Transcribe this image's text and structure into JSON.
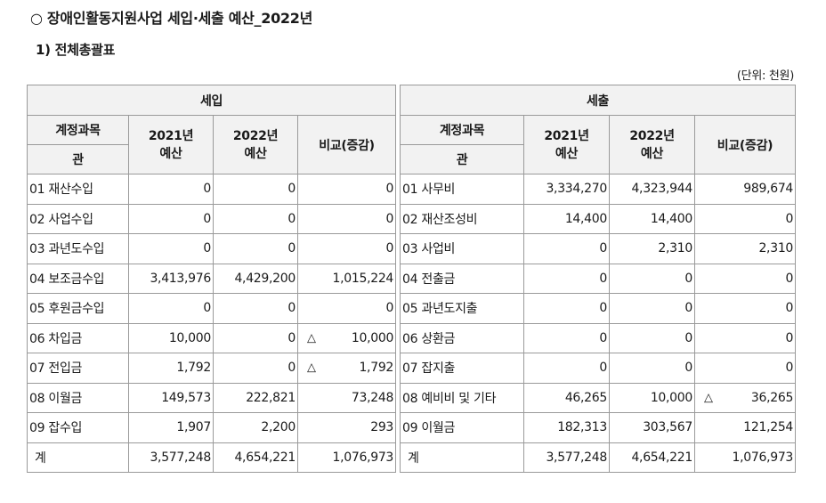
{
  "title": "○ 장애인활동지원사업 세입·세출 예산_2022년",
  "subtitle": "1) 전체총괄표",
  "unit": "(단위: 천원)",
  "income": {
    "header": "세입",
    "col_account": "계정과목",
    "col_category": "관",
    "col_2021_line1": "2021년",
    "col_2021_line2": "예산",
    "col_2022_line1": "2022년",
    "col_2022_line2": "예산",
    "col_compare": "비교(증감)",
    "rows": [
      {
        "name": "01 재산수입",
        "y2021": "0",
        "y2022": "0",
        "tri": "",
        "cmp": "0"
      },
      {
        "name": "02 사업수입",
        "y2021": "0",
        "y2022": "0",
        "tri": "",
        "cmp": "0"
      },
      {
        "name": "03 과년도수입",
        "y2021": "0",
        "y2022": "0",
        "tri": "",
        "cmp": "0"
      },
      {
        "name": "04 보조금수입",
        "y2021": "3,413,976",
        "y2022": "4,429,200",
        "tri": "",
        "cmp": "1,015,224"
      },
      {
        "name": "05 후원금수입",
        "y2021": "0",
        "y2022": "0",
        "tri": "",
        "cmp": "0"
      },
      {
        "name": "06 차입금",
        "y2021": "10,000",
        "y2022": "0",
        "tri": "△",
        "cmp": "10,000"
      },
      {
        "name": "07 전입금",
        "y2021": "1,792",
        "y2022": "0",
        "tri": "△",
        "cmp": "1,792"
      },
      {
        "name": "08 이월금",
        "y2021": "149,573",
        "y2022": "222,821",
        "tri": "",
        "cmp": "73,248"
      },
      {
        "name": "09 잡수입",
        "y2021": "1,907",
        "y2022": "2,200",
        "tri": "",
        "cmp": "293"
      }
    ],
    "total": {
      "name": "계",
      "y2021": "3,577,248",
      "y2022": "4,654,221",
      "cmp": "1,076,973"
    }
  },
  "expense": {
    "header": "세출",
    "col_account": "계정과목",
    "col_category": "관",
    "col_2021_line1": "2021년",
    "col_2021_line2": "예산",
    "col_2022_line1": "2022년",
    "col_2022_line2": "예산",
    "col_compare": "비교(증감)",
    "rows": [
      {
        "name": "01 사무비",
        "y2021": "3,334,270",
        "y2022": "4,323,944",
        "tri": "",
        "cmp": "989,674"
      },
      {
        "name": "02 재산조성비",
        "y2021": "14,400",
        "y2022": "14,400",
        "tri": "",
        "cmp": "0"
      },
      {
        "name": "03 사업비",
        "y2021": "0",
        "y2022": "2,310",
        "tri": "",
        "cmp": "2,310"
      },
      {
        "name": "04 전출금",
        "y2021": "0",
        "y2022": "0",
        "tri": "",
        "cmp": "0"
      },
      {
        "name": "05 과년도지출",
        "y2021": "0",
        "y2022": "0",
        "tri": "",
        "cmp": "0"
      },
      {
        "name": "06 상환금",
        "y2021": "0",
        "y2022": "0",
        "tri": "",
        "cmp": "0"
      },
      {
        "name": "07 잡지출",
        "y2021": "0",
        "y2022": "0",
        "tri": "",
        "cmp": "0"
      },
      {
        "name": "08 예비비 및 기타",
        "y2021": "46,265",
        "y2022": "10,000",
        "tri": "△",
        "cmp": "36,265"
      },
      {
        "name": "09 이월금",
        "y2021": "182,313",
        "y2022": "303,567",
        "tri": "",
        "cmp": "121,254"
      }
    ],
    "total": {
      "name": "계",
      "y2021": "3,577,248",
      "y2022": "4,654,221",
      "cmp": "1,076,973"
    }
  }
}
